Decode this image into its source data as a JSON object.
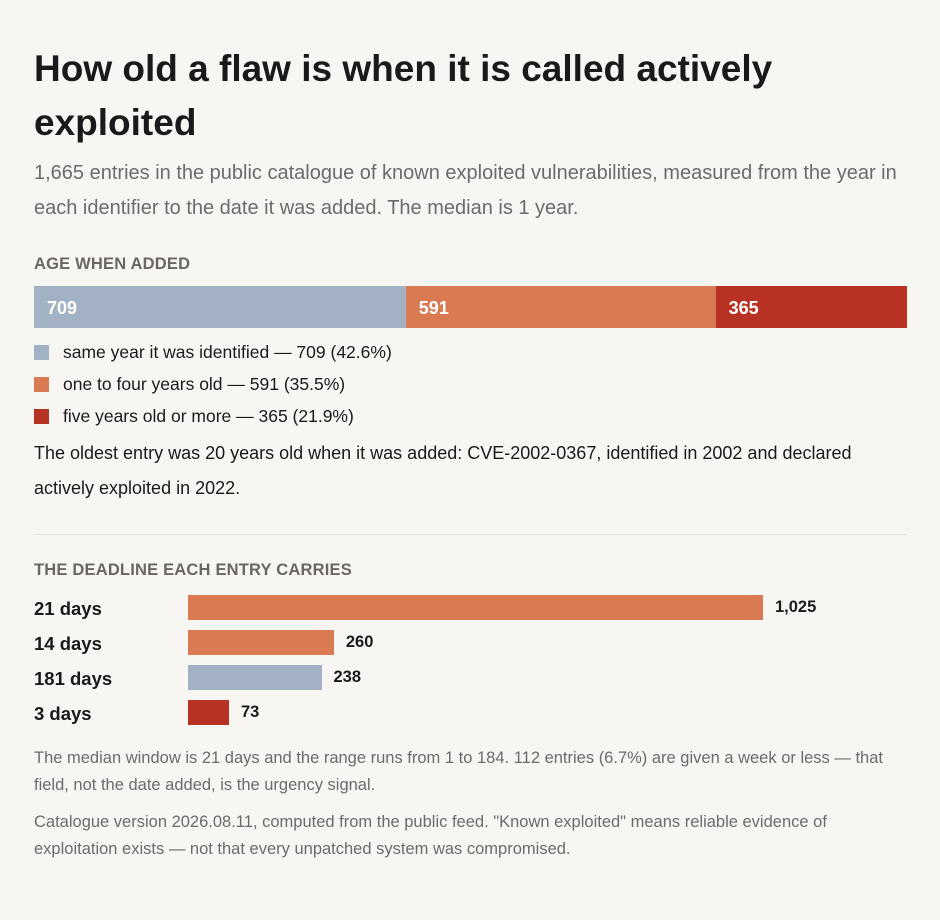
{
  "title": "How old a flaw is when it is called actively exploited",
  "subtitle": "1,665 entries in the public catalogue of known exploited vulnerabilities, measured from the year in each identifier to the date it was added. The median is 1 year.",
  "colors": {
    "blue": "#a2b2c4",
    "orange": "#d97a52",
    "red": "#b83224"
  },
  "chart_data": [
    {
      "type": "bar",
      "stacked": true,
      "orientation": "horizontal",
      "title": "AGE WHEN ADDED",
      "total": 1665,
      "segments": [
        {
          "label": "709",
          "value": 709,
          "color": "#a2b2c4",
          "legend": "same year it was identified — 709 (42.6%)"
        },
        {
          "label": "591",
          "value": 591,
          "color": "#d97a52",
          "legend": "one to four years old — 591 (35.5%)"
        },
        {
          "label": "365",
          "value": 365,
          "color": "#b83224",
          "legend": "five years old or more — 365 (21.9%)"
        }
      ],
      "legend_position": "below"
    },
    {
      "type": "bar",
      "orientation": "horizontal",
      "title": "THE DEADLINE EACH ENTRY CARRIES",
      "categories": [
        "21 days",
        "14 days",
        "181 days",
        "3 days"
      ],
      "values": [
        1025,
        260,
        238,
        73
      ],
      "value_labels": [
        "1,025",
        "260",
        "238",
        "73"
      ],
      "colors": [
        "#d97a52",
        "#d97a52",
        "#a2b2c4",
        "#b83224"
      ],
      "xlim": [
        0,
        1025
      ]
    }
  ],
  "notes": {
    "oldest": "The oldest entry was 20 years old when it was added: CVE-2002-0367, identified in 2002 and declared actively exploited in 2022.",
    "median": "The median window is 21 days and the range runs from 1 to 184. 112 entries (6.7%) are given a week or less — that field, not the date added, is the urgency signal.",
    "source": "Catalogue version 2026.08.11, computed from the public feed. \"Known exploited\" means reliable evidence of exploitation exists — not that every unpatched system was compromised."
  }
}
